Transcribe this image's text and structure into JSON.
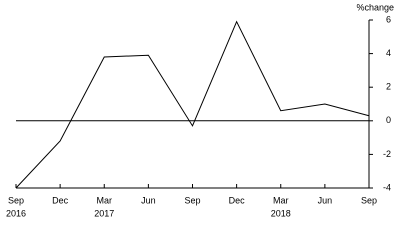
{
  "chart_data": {
    "type": "line",
    "y_label": "%change",
    "categories": [
      "Sep",
      "Dec",
      "Mar",
      "Jun",
      "Sep",
      "Dec",
      "Mar",
      "Jun",
      "Sep"
    ],
    "years": [
      "2016",
      null,
      "2017",
      null,
      null,
      null,
      "2018",
      null,
      null
    ],
    "values": [
      -4.0,
      -1.2,
      3.8,
      3.9,
      -0.3,
      5.9,
      0.6,
      1.0,
      0.3
    ],
    "color": "#000000",
    "ylim": [
      -4,
      6
    ],
    "yticks": [
      -4,
      -2,
      0,
      2,
      4,
      6
    ],
    "zero_line": true
  }
}
